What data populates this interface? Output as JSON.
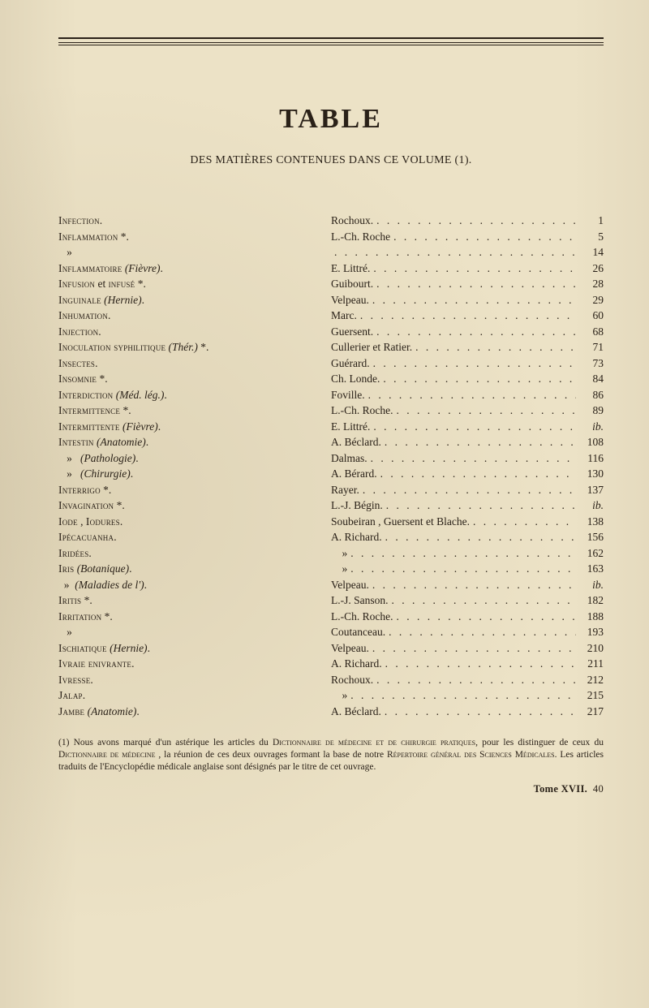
{
  "title": "TABLE",
  "subtitle": "DES MATIÈRES CONTENUES DANS CE VOLUME (1).",
  "left": [
    {
      "html": "<span class='smallcaps'>Infection</span>."
    },
    {
      "html": "<span class='smallcaps'>Inflammation</span> *."
    },
    {
      "html": "&nbsp;&nbsp;&nbsp;»"
    },
    {
      "html": "<span class='smallcaps'>Inflammatoire</span> <span class='ital'>(Fièvre)</span>."
    },
    {
      "html": "<span class='smallcaps'>Infusion</span> et <span class='smallcaps'>infusé</span> *."
    },
    {
      "html": "<span class='smallcaps'>Inguinale</span> <span class='ital'>(Hernie)</span>."
    },
    {
      "html": "<span class='smallcaps'>Inhumation</span>."
    },
    {
      "html": "<span class='smallcaps'>Injection</span>."
    },
    {
      "html": "<span class='smallcaps'>Inoculation syphilitique</span> <span class='ital'>(Thér.)</span> *."
    },
    {
      "html": "<span class='smallcaps'>Insectes</span>."
    },
    {
      "html": "<span class='smallcaps'>Insomnie</span> *."
    },
    {
      "html": "<span class='smallcaps'>Interdiction</span> <span class='ital'>(Méd. lég.)</span>."
    },
    {
      "html": "<span class='smallcaps'>Intermittence</span> *."
    },
    {
      "html": "<span class='smallcaps'>Intermittente</span> <span class='ital'>(Fièvre)</span>."
    },
    {
      "html": "<span class='smallcaps'>Intestin</span> <span class='ital'>(Anatomie)</span>."
    },
    {
      "html": "&nbsp;&nbsp;&nbsp;»&nbsp;&nbsp;&nbsp;<span class='ital'>(Pathologie)</span>."
    },
    {
      "html": "&nbsp;&nbsp;&nbsp;»&nbsp;&nbsp;&nbsp;<span class='ital'>(Chirurgie)</span>."
    },
    {
      "html": "<span class='smallcaps'>Interrigo</span> *."
    },
    {
      "html": "<span class='smallcaps'>Invagination</span> *."
    },
    {
      "html": "<span class='smallcaps'>Iode</span> , <span class='smallcaps'>Iodures</span>."
    },
    {
      "html": "<span class='smallcaps'>Ipécacuanha</span>."
    },
    {
      "html": "<span class='smallcaps'>Iridées</span>."
    },
    {
      "html": "<span class='smallcaps'>Iris</span> <span class='ital'>(Botanique)</span>."
    },
    {
      "html": "&nbsp;&nbsp;»&nbsp;&nbsp;<span class='ital'>(Maladies de l')</span>."
    },
    {
      "html": "<span class='smallcaps'>Iritis</span> *."
    },
    {
      "html": "<span class='smallcaps'>Irritation</span> *."
    },
    {
      "html": "&nbsp;&nbsp;&nbsp;»"
    },
    {
      "html": "<span class='smallcaps'>Ischiatique</span> <span class='ital'>(Hernie)</span>."
    },
    {
      "html": "<span class='smallcaps'>Ivraie enivrante</span>."
    },
    {
      "html": "<span class='smallcaps'>Ivresse</span>."
    },
    {
      "html": "<span class='smallcaps'>Jalap</span>."
    },
    {
      "html": "<span class='smallcaps'>Jambe</span> <span class='ital'>(Anatomie)</span>."
    }
  ],
  "right": [
    {
      "label": "Rochoux.",
      "page": "1"
    },
    {
      "label": "L.-Ch. Roche",
      "page": "5"
    },
    {
      "label": "",
      "page": "14"
    },
    {
      "label": "E. Littré.",
      "page": "26"
    },
    {
      "label": "Guibourt.",
      "page": "28"
    },
    {
      "label": "Velpeau.",
      "page": "29"
    },
    {
      "label": "Marc.",
      "page": "60"
    },
    {
      "label": "Guersent.",
      "page": "68"
    },
    {
      "label": "Cullerier et Ratier.",
      "page": "71"
    },
    {
      "label": "Guérard.",
      "page": "73"
    },
    {
      "label": "Ch. Londe.",
      "page": "84"
    },
    {
      "label": "Foville.",
      "page": "86"
    },
    {
      "label": "L.-Ch. Roche.",
      "page": "89"
    },
    {
      "label": "E. Littré.",
      "page": "<span class='ital'>ib.</span>"
    },
    {
      "label": "A. Béclard.",
      "page": "108"
    },
    {
      "label": "Dalmas.",
      "page": "116"
    },
    {
      "label": "A. Bérard.",
      "page": "130"
    },
    {
      "label": "Rayer.",
      "page": "137"
    },
    {
      "label": "L.-J. Bégin.",
      "page": "<span class='ital'>ib.</span>"
    },
    {
      "label": "Soubeiran , Guersent et Blache.",
      "page": "138"
    },
    {
      "label": "A. Richard.",
      "page": "156"
    },
    {
      "label": "&nbsp;&nbsp;&nbsp;&nbsp;»",
      "page": "162"
    },
    {
      "label": "&nbsp;&nbsp;&nbsp;&nbsp;»",
      "page": "163"
    },
    {
      "label": "Velpeau.",
      "page": "<span class='ital'>ib.</span>"
    },
    {
      "label": "L.-J. Sanson.",
      "page": "182"
    },
    {
      "label": "L.-Ch. Roche.",
      "page": "188"
    },
    {
      "label": "Coutanceau.",
      "page": "193"
    },
    {
      "label": "Velpeau.",
      "page": "210"
    },
    {
      "label": "A. Richard.",
      "page": "211"
    },
    {
      "label": "Rochoux.",
      "page": "212"
    },
    {
      "label": "&nbsp;&nbsp;&nbsp;&nbsp;»",
      "page": "215"
    },
    {
      "label": "A. Béclard.",
      "page": "217"
    }
  ],
  "footnote": "(1) Nous avons marqué d'un astérique les articles du <span class='sc'>Dictionnaire de médecine et de chirurgie pratiques</span>, pour les distinguer de ceux du <span class='sc'>Dictionnaire de médecine</span> , la réunion de ces deux ouvrages formant la base de notre <span class='sc'>Répertoire général des Sciences Médicales</span>. Les articles traduits de l'Encyclopédie médicale anglaise sont désignés par le titre de cet ouvrage.",
  "signature": "<b>Tome XVII.</b>&nbsp;&nbsp;40"
}
